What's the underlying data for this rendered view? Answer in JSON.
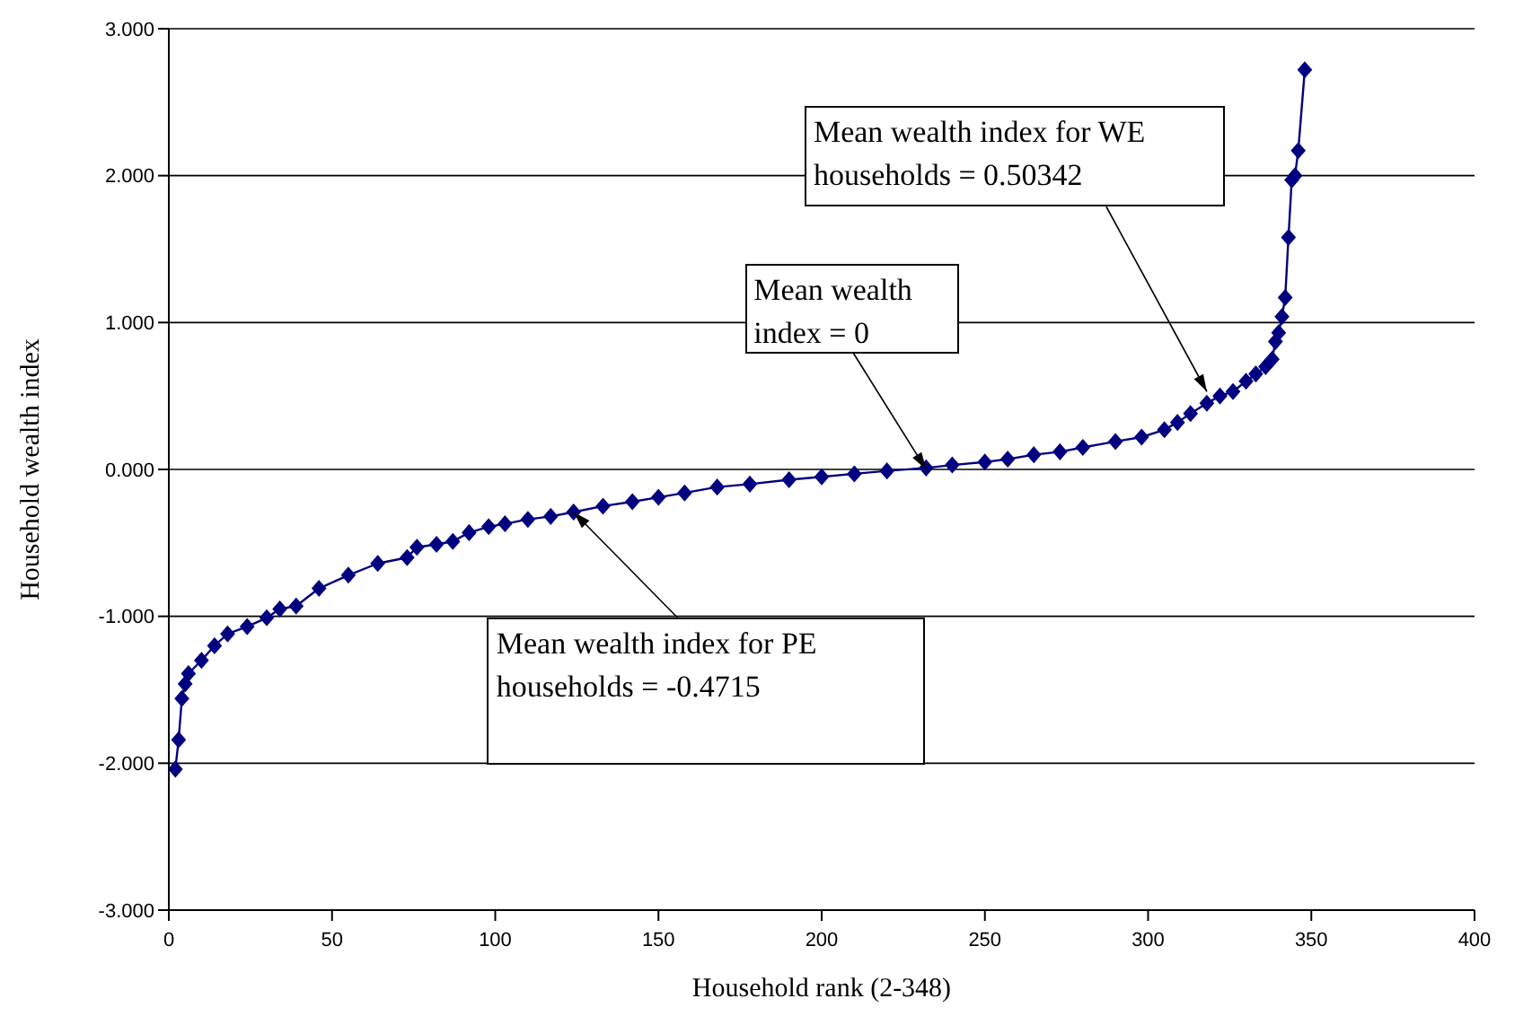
{
  "chart_data": {
    "type": "line",
    "xlabel": "Household rank (2-348)",
    "ylabel": "Household wealth index",
    "x": [
      2,
      3,
      4,
      5,
      6,
      10,
      14,
      18,
      24,
      30,
      34,
      39,
      46,
      55,
      64,
      73,
      76,
      82,
      87,
      92,
      98,
      103,
      110,
      117,
      124,
      133,
      142,
      150,
      158,
      168,
      178,
      190,
      200,
      210,
      220,
      232,
      240,
      250,
      257,
      265,
      273,
      280,
      290,
      298,
      305,
      309,
      313,
      318,
      322,
      326,
      330,
      333,
      336,
      338,
      339,
      340,
      341,
      342,
      343,
      344,
      345,
      346,
      348
    ],
    "series": [
      {
        "color": "#000080",
        "values": [
          -2.04,
          -1.84,
          -1.56,
          -1.46,
          -1.39,
          -1.3,
          -1.2,
          -1.12,
          -1.07,
          -1.01,
          -0.95,
          -0.93,
          -0.81,
          -0.72,
          -0.64,
          -0.6,
          -0.53,
          -0.51,
          -0.49,
          -0.43,
          -0.39,
          -0.37,
          -0.34,
          -0.32,
          -0.29,
          -0.25,
          -0.22,
          -0.19,
          -0.16,
          -0.12,
          -0.1,
          -0.07,
          -0.05,
          -0.03,
          -0.01,
          0.01,
          0.03,
          0.05,
          0.07,
          0.1,
          0.12,
          0.15,
          0.19,
          0.22,
          0.27,
          0.32,
          0.38,
          0.45,
          0.5,
          0.53,
          0.6,
          0.65,
          0.7,
          0.75,
          0.87,
          0.93,
          1.04,
          1.17,
          1.58,
          1.97,
          2.0,
          2.17,
          2.72
        ]
      }
    ],
    "xlim": [
      0,
      400
    ],
    "xticks": [
      0,
      50,
      100,
      150,
      200,
      250,
      300,
      350,
      400
    ],
    "ylim": [
      -3,
      3
    ],
    "yticks": [
      {
        "value": -3,
        "label": "-3.000"
      },
      {
        "value": -2,
        "label": "-2.000"
      },
      {
        "value": -1,
        "label": "-1.000"
      },
      {
        "value": 0,
        "label": "0.000"
      },
      {
        "value": 1,
        "label": "1.000"
      },
      {
        "value": 2,
        "label": "2.000"
      },
      {
        "value": 3,
        "label": "3.000"
      }
    ],
    "grid": "y",
    "marker": "diamond",
    "line_style": "solid",
    "annotations": [
      {
        "text": "Mean wealth index for WE households = 0.50342",
        "x": 318,
        "y": 0.53
      },
      {
        "text": "Mean wealth index = 0",
        "x": 232,
        "y": 0
      },
      {
        "text": "Mean wealth index for PE households = -0.4715",
        "x": 124,
        "y": -0.29
      }
    ]
  }
}
